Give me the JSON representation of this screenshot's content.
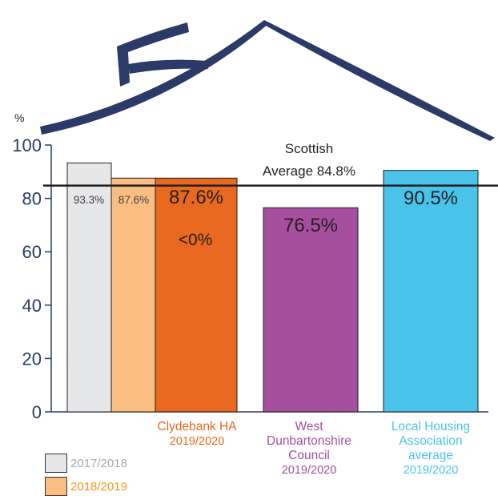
{
  "chart_data": {
    "type": "bar",
    "ylabel": "%",
    "ylim": [
      0,
      100
    ],
    "yticks": [
      0,
      20,
      40,
      60,
      80,
      100
    ],
    "reference_line": {
      "value": 84.8,
      "label_line1": "Scottish",
      "label_line2": "Average 84.8%"
    },
    "bars": [
      {
        "series": "2017/2018",
        "group": "Clydebank HA",
        "value": 93.3,
        "label": "93.3%",
        "color": "#e6e7e8"
      },
      {
        "series": "2018/2019",
        "group": "Clydebank HA",
        "value": 87.6,
        "label": "87.6%",
        "color": "#fbbe82"
      },
      {
        "series": "2019/2020",
        "group": "Clydebank HA",
        "value": 87.6,
        "label": "87.6%",
        "color": "#e8681f"
      },
      {
        "series": "2019/2020",
        "group": "West Dunbartonshire Council",
        "value": 76.5,
        "label": "76.5%",
        "color": "#a64f9f"
      },
      {
        "series": "2019/2020",
        "group": "Local Housing Association average",
        "value": 90.5,
        "label": "90.5%",
        "color": "#4ac3ea"
      }
    ],
    "change_annotation": "<0%",
    "categories": [
      {
        "lines": [
          "Clydebank HA"
        ],
        "period": "2019/2020",
        "color": "#e8681f"
      },
      {
        "lines": [
          "West",
          "Dunbartonshire",
          "Council"
        ],
        "period": "2019/2020",
        "color": "#a64f9f"
      },
      {
        "lines": [
          "Local Housing",
          "Association",
          "average"
        ],
        "period": "2019/2020",
        "color": "#4ac3ea"
      }
    ],
    "legend": [
      {
        "label": "2017/2018",
        "color": "#e6e7e8",
        "text_color": "#a7a9ac"
      },
      {
        "label": "2018/2019",
        "color": "#fbbe82",
        "text_color": "#f7941d"
      }
    ]
  },
  "colors": {
    "roof": "#2b3a67",
    "axis": "#2b3a67",
    "text": "#231f20"
  }
}
